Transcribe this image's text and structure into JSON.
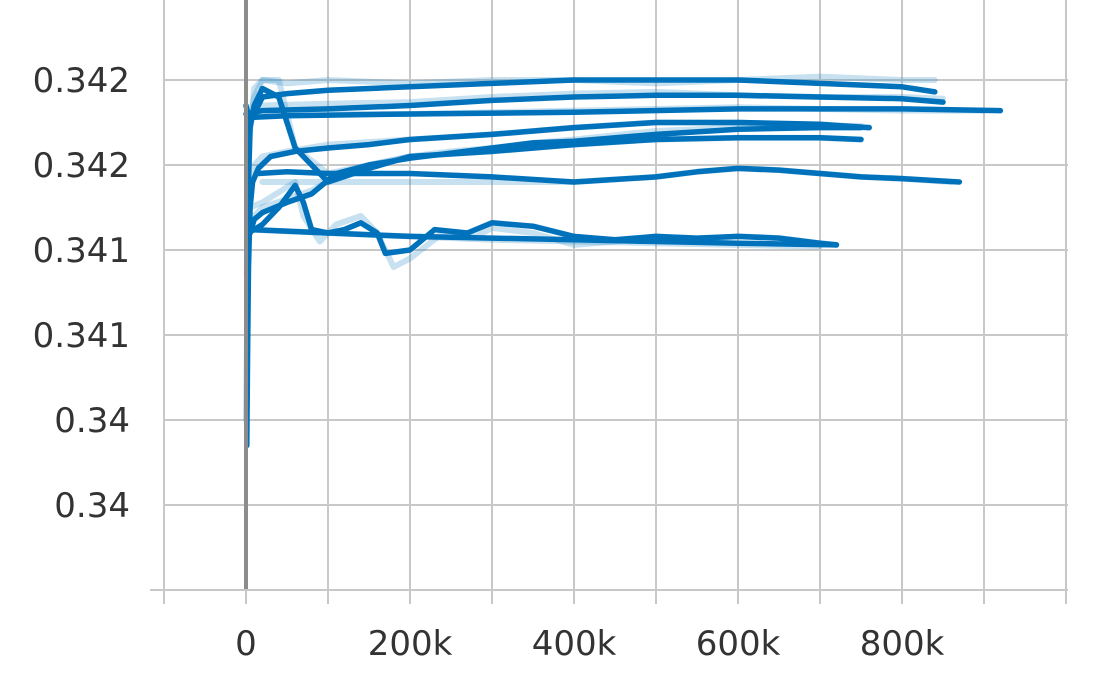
{
  "chart_data": {
    "type": "line",
    "title": "",
    "xlabel": "",
    "ylabel": "",
    "xlim": [
      -100000,
      1000000
    ],
    "ylim": [
      0.3395,
      0.3428
    ],
    "grid": true,
    "x_ticks": [
      {
        "value": 0,
        "label": "0"
      },
      {
        "value": 200000,
        "label": "200k"
      },
      {
        "value": 400000,
        "label": "400k"
      },
      {
        "value": 600000,
        "label": "600k"
      },
      {
        "value": 800000,
        "label": "800k"
      }
    ],
    "x_minor_ticks": [
      -100000,
      100000,
      300000,
      500000,
      700000,
      900000,
      1000000
    ],
    "y_ticks": [
      {
        "value": 0.342,
        "label": "0.342"
      },
      {
        "value": 0.3415,
        "label": "0.342"
      },
      {
        "value": 0.341,
        "label": "0.341"
      },
      {
        "value": 0.3405,
        "label": "0.341"
      },
      {
        "value": 0.34,
        "label": "0.34"
      },
      {
        "value": 0.3395,
        "label": "0.34"
      }
    ],
    "colors": {
      "smoothed": "#0072bb",
      "raw": "#1e88c8"
    },
    "series": [
      {
        "raw": [
          [
            0,
            0.34
          ],
          [
            1500,
            0.3406
          ],
          [
            3000,
            0.3411
          ],
          [
            5000,
            0.34135
          ],
          [
            10000,
            0.3415
          ],
          [
            20000,
            0.34155
          ],
          [
            50000,
            0.34158
          ],
          [
            100000,
            0.34162
          ],
          [
            200000,
            0.34165
          ],
          [
            300000,
            0.34168
          ],
          [
            400000,
            0.34172
          ],
          [
            500000,
            0.34175
          ],
          [
            600000,
            0.34175
          ],
          [
            700000,
            0.34173
          ],
          [
            760000,
            0.34172
          ]
        ],
        "smoothed": [
          [
            1000,
            0.33985
          ],
          [
            2000,
            0.3404
          ],
          [
            3000,
            0.3409
          ],
          [
            5000,
            0.34125
          ],
          [
            8000,
            0.3414
          ],
          [
            15000,
            0.34148
          ],
          [
            30000,
            0.34155
          ],
          [
            60000,
            0.34158
          ],
          [
            100000,
            0.3416
          ],
          [
            150000,
            0.34162
          ],
          [
            200000,
            0.34165
          ],
          [
            300000,
            0.34168
          ],
          [
            400000,
            0.34172
          ],
          [
            500000,
            0.34175
          ],
          [
            600000,
            0.34175
          ],
          [
            700000,
            0.34174
          ],
          [
            760000,
            0.34172
          ]
        ]
      },
      {
        "raw": [
          [
            5000,
            0.3417
          ],
          [
            10000,
            0.34195
          ],
          [
            20000,
            0.342
          ],
          [
            50000,
            0.34198
          ],
          [
            100000,
            0.342
          ],
          [
            200000,
            0.34198
          ],
          [
            300000,
            0.342
          ],
          [
            400000,
            0.342
          ],
          [
            500000,
            0.34198
          ],
          [
            600000,
            0.342
          ],
          [
            700000,
            0.34202
          ],
          [
            800000,
            0.342
          ],
          [
            840000,
            0.342
          ]
        ],
        "smoothed": [
          [
            0,
            0.34185
          ],
          [
            5000,
            0.34175
          ],
          [
            10000,
            0.3418
          ],
          [
            20000,
            0.3419
          ],
          [
            50000,
            0.34192
          ],
          [
            100000,
            0.34194
          ],
          [
            200000,
            0.34196
          ],
          [
            300000,
            0.34198
          ],
          [
            400000,
            0.342
          ],
          [
            500000,
            0.342
          ],
          [
            600000,
            0.342
          ],
          [
            700000,
            0.34198
          ],
          [
            800000,
            0.34196
          ],
          [
            840000,
            0.34193
          ]
        ]
      },
      {
        "raw": [
          [
            5000,
            0.3418
          ],
          [
            20000,
            0.34185
          ],
          [
            100000,
            0.34186
          ],
          [
            200000,
            0.34187
          ],
          [
            300000,
            0.3419
          ],
          [
            400000,
            0.34192
          ],
          [
            500000,
            0.34193
          ],
          [
            600000,
            0.34191
          ],
          [
            700000,
            0.3419
          ],
          [
            800000,
            0.3419
          ],
          [
            850000,
            0.34189
          ]
        ],
        "smoothed": [
          [
            0,
            0.3418
          ],
          [
            20000,
            0.34182
          ],
          [
            100000,
            0.34183
          ],
          [
            200000,
            0.34185
          ],
          [
            300000,
            0.34188
          ],
          [
            400000,
            0.3419
          ],
          [
            500000,
            0.34191
          ],
          [
            600000,
            0.34191
          ],
          [
            700000,
            0.3419
          ],
          [
            800000,
            0.34189
          ],
          [
            850000,
            0.34187
          ]
        ]
      },
      {
        "raw": [
          [
            5000,
            0.34178
          ],
          [
            50000,
            0.3418
          ],
          [
            200000,
            0.3418
          ],
          [
            400000,
            0.34182
          ],
          [
            600000,
            0.34184
          ],
          [
            800000,
            0.34182
          ],
          [
            900000,
            0.34182
          ]
        ],
        "smoothed": [
          [
            5000,
            0.34178
          ],
          [
            50000,
            0.34179
          ],
          [
            200000,
            0.3418
          ],
          [
            400000,
            0.34181
          ],
          [
            600000,
            0.34183
          ],
          [
            800000,
            0.34183
          ],
          [
            920000,
            0.34182
          ]
        ]
      },
      {
        "raw": [
          [
            1000,
            0.34085
          ],
          [
            3000,
            0.34145
          ],
          [
            5000,
            0.34175
          ],
          [
            10000,
            0.3419
          ],
          [
            20000,
            0.342
          ],
          [
            40000,
            0.342
          ],
          [
            60000,
            0.3416
          ],
          [
            100000,
            0.34145
          ],
          [
            150000,
            0.3415
          ],
          [
            200000,
            0.34155
          ],
          [
            300000,
            0.34158
          ],
          [
            400000,
            0.34162
          ],
          [
            500000,
            0.34165
          ],
          [
            600000,
            0.34166
          ],
          [
            700000,
            0.34166
          ],
          [
            750000,
            0.34165
          ]
        ],
        "smoothed": [
          [
            1000,
            0.3408
          ],
          [
            3000,
            0.3414
          ],
          [
            5000,
            0.34172
          ],
          [
            10000,
            0.34185
          ],
          [
            20000,
            0.34195
          ],
          [
            40000,
            0.3419
          ],
          [
            60000,
            0.3416
          ],
          [
            100000,
            0.3414
          ],
          [
            150000,
            0.34148
          ],
          [
            200000,
            0.34155
          ],
          [
            300000,
            0.34158
          ],
          [
            400000,
            0.34162
          ],
          [
            500000,
            0.34165
          ],
          [
            600000,
            0.34166
          ],
          [
            700000,
            0.34166
          ],
          [
            750000,
            0.34165
          ]
        ]
      },
      {
        "raw": [
          [
            20000,
            0.3414
          ],
          [
            100000,
            0.3414
          ],
          [
            200000,
            0.3414
          ],
          [
            400000,
            0.3414
          ],
          [
            500000,
            0.34143
          ],
          [
            550000,
            0.34146
          ],
          [
            600000,
            0.34148
          ],
          [
            650000,
            0.34147
          ],
          [
            700000,
            0.34145
          ],
          [
            750000,
            0.34143
          ],
          [
            800000,
            0.34142
          ],
          [
            860000,
            0.3414
          ]
        ],
        "smoothed": [
          [
            15000,
            0.34145
          ],
          [
            50000,
            0.34146
          ],
          [
            100000,
            0.34145
          ],
          [
            200000,
            0.34145
          ],
          [
            300000,
            0.34143
          ],
          [
            400000,
            0.3414
          ],
          [
            500000,
            0.34143
          ],
          [
            550000,
            0.34146
          ],
          [
            600000,
            0.34148
          ],
          [
            650000,
            0.34147
          ],
          [
            700000,
            0.34145
          ],
          [
            750000,
            0.34143
          ],
          [
            800000,
            0.34142
          ],
          [
            870000,
            0.3414
          ]
        ]
      },
      {
        "raw": [
          [
            5000,
            0.3411
          ],
          [
            10000,
            0.3412
          ],
          [
            20000,
            0.34125
          ],
          [
            50000,
            0.3413
          ],
          [
            80000,
            0.34135
          ],
          [
            110000,
            0.34143
          ],
          [
            150000,
            0.3415
          ],
          [
            200000,
            0.34155
          ],
          [
            250000,
            0.34158
          ],
          [
            300000,
            0.3416
          ],
          [
            350000,
            0.34163
          ],
          [
            400000,
            0.34165
          ],
          [
            500000,
            0.3417
          ],
          [
            600000,
            0.34172
          ],
          [
            700000,
            0.34173
          ],
          [
            750000,
            0.34173
          ]
        ],
        "smoothed": [
          [
            5000,
            0.3411
          ],
          [
            10000,
            0.34118
          ],
          [
            20000,
            0.34122
          ],
          [
            50000,
            0.34128
          ],
          [
            80000,
            0.34133
          ],
          [
            110000,
            0.34145
          ],
          [
            150000,
            0.3415
          ],
          [
            200000,
            0.34154
          ],
          [
            250000,
            0.34157
          ],
          [
            300000,
            0.3416
          ],
          [
            350000,
            0.34163
          ],
          [
            400000,
            0.34164
          ],
          [
            500000,
            0.34168
          ],
          [
            600000,
            0.34171
          ],
          [
            700000,
            0.34172
          ],
          [
            750000,
            0.34172
          ]
        ]
      },
      {
        "raw": [
          [
            1000,
            0.3412
          ],
          [
            5000,
            0.34125
          ],
          [
            20000,
            0.34128
          ],
          [
            60000,
            0.3414
          ],
          [
            70000,
            0.3412
          ],
          [
            90000,
            0.34105
          ],
          [
            110000,
            0.34115
          ],
          [
            140000,
            0.3412
          ],
          [
            160000,
            0.3411
          ],
          [
            180000,
            0.3409
          ],
          [
            200000,
            0.34095
          ],
          [
            240000,
            0.3411
          ],
          [
            280000,
            0.34108
          ],
          [
            300000,
            0.34113
          ],
          [
            350000,
            0.3411
          ],
          [
            400000,
            0.34103
          ],
          [
            450000,
            0.34105
          ],
          [
            500000,
            0.34108
          ],
          [
            550000,
            0.34106
          ],
          [
            600000,
            0.34108
          ],
          [
            650000,
            0.34107
          ],
          [
            700000,
            0.34104
          ],
          [
            720000,
            0.34103
          ]
        ],
        "smoothed": [
          [
            2000,
            0.3411
          ],
          [
            10000,
            0.34112
          ],
          [
            20000,
            0.34115
          ],
          [
            40000,
            0.34125
          ],
          [
            60000,
            0.34138
          ],
          [
            70000,
            0.34128
          ],
          [
            80000,
            0.34112
          ],
          [
            100000,
            0.3411
          ],
          [
            120000,
            0.34112
          ],
          [
            140000,
            0.34116
          ],
          [
            160000,
            0.3411
          ],
          [
            170000,
            0.34098
          ],
          [
            200000,
            0.341
          ],
          [
            230000,
            0.34112
          ],
          [
            270000,
            0.3411
          ],
          [
            300000,
            0.34116
          ],
          [
            350000,
            0.34114
          ],
          [
            400000,
            0.34108
          ],
          [
            450000,
            0.34106
          ],
          [
            500000,
            0.34108
          ],
          [
            550000,
            0.34107
          ],
          [
            600000,
            0.34108
          ],
          [
            650000,
            0.34107
          ],
          [
            700000,
            0.34104
          ],
          [
            720000,
            0.34103
          ]
        ]
      },
      {
        "raw": [
          [
            5000,
            0.34112
          ],
          [
            100000,
            0.3411
          ],
          [
            200000,
            0.34108
          ],
          [
            300000,
            0.34106
          ],
          [
            400000,
            0.34105
          ],
          [
            500000,
            0.34104
          ],
          [
            600000,
            0.34103
          ],
          [
            700000,
            0.34102
          ]
        ],
        "smoothed": [
          [
            5000,
            0.34112
          ],
          [
            100000,
            0.3411
          ],
          [
            200000,
            0.34108
          ],
          [
            300000,
            0.34107
          ],
          [
            400000,
            0.34106
          ],
          [
            500000,
            0.34105
          ],
          [
            600000,
            0.34104
          ],
          [
            720000,
            0.34103
          ]
        ]
      }
    ]
  }
}
